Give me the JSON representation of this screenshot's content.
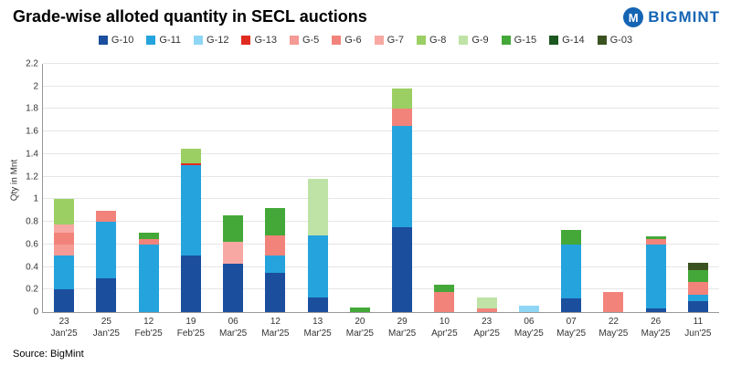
{
  "header": {
    "title": "Grade-wise alloted quantity in SECL auctions",
    "logo_text": "BIGMINT",
    "logo_mark": "M",
    "brand_color": "#1464b4"
  },
  "source": "Source: BigMint",
  "chart_data": {
    "type": "bar",
    "stacked": true,
    "title": "Grade-wise alloted quantity in SECL auctions",
    "ylabel": "Qty in Mnt",
    "ylim": [
      0,
      2.2
    ],
    "ytick_step": 0.2,
    "grid": true,
    "legend_position": "top",
    "categories": [
      {
        "day": "23",
        "month": "Jan'25"
      },
      {
        "day": "25",
        "month": "Jan'25"
      },
      {
        "day": "12",
        "month": "Feb'25"
      },
      {
        "day": "19",
        "month": "Feb'25"
      },
      {
        "day": "06",
        "month": "Mar'25"
      },
      {
        "day": "12",
        "month": "Mar'25"
      },
      {
        "day": "13",
        "month": "Mar'25"
      },
      {
        "day": "20",
        "month": "Mar'25"
      },
      {
        "day": "29",
        "month": "Mar'25"
      },
      {
        "day": "10",
        "month": "Apr'25"
      },
      {
        "day": "23",
        "month": "Apr'25"
      },
      {
        "day": "06",
        "month": "May'25"
      },
      {
        "day": "07",
        "month": "May'25"
      },
      {
        "day": "22",
        "month": "May'25"
      },
      {
        "day": "26",
        "month": "May'25"
      },
      {
        "day": "11",
        "month": "Jun'25"
      }
    ],
    "series": [
      {
        "name": "G-10",
        "color": "#1b4f9e",
        "values": [
          0.2,
          0.3,
          0,
          0.5,
          0.43,
          0.35,
          0.13,
          0,
          0.75,
          0,
          0,
          0,
          0.12,
          0,
          0.03,
          0.1
        ]
      },
      {
        "name": "G-11",
        "color": "#25a3dd",
        "values": [
          0.3,
          0.5,
          0.6,
          0.8,
          0,
          0.15,
          0.55,
          0,
          0.9,
          0,
          0,
          0,
          0.48,
          0,
          0.57,
          0.05
        ]
      },
      {
        "name": "G-12",
        "color": "#8fd6f5",
        "values": [
          0,
          0,
          0,
          0,
          0,
          0,
          0,
          0,
          0,
          0,
          0,
          0.06,
          0,
          0,
          0,
          0
        ]
      },
      {
        "name": "G-13",
        "color": "#e02b20",
        "values": [
          0,
          0,
          0,
          0.02,
          0,
          0,
          0,
          0,
          0,
          0,
          0,
          0,
          0,
          0,
          0,
          0
        ]
      },
      {
        "name": "G-5",
        "color": "#f59a94",
        "values": [
          0.1,
          0,
          0,
          0,
          0,
          0,
          0,
          0,
          0,
          0,
          0,
          0,
          0,
          0,
          0,
          0
        ]
      },
      {
        "name": "G-6",
        "color": "#f2837b",
        "values": [
          0.1,
          0.1,
          0.05,
          0,
          0,
          0.18,
          0,
          0,
          0.15,
          0.18,
          0.03,
          0,
          0,
          0.18,
          0.05,
          0.12
        ]
      },
      {
        "name": "G-7",
        "color": "#f8a8a2",
        "values": [
          0.08,
          0,
          0,
          0,
          0.19,
          0,
          0,
          0,
          0,
          0,
          0,
          0,
          0,
          0,
          0,
          0
        ]
      },
      {
        "name": "G-8",
        "color": "#9bcf63",
        "values": [
          0.22,
          0,
          0,
          0.13,
          0,
          0,
          0,
          0,
          0.18,
          0,
          0,
          0,
          0,
          0,
          0,
          0
        ]
      },
      {
        "name": "G-9",
        "color": "#bfe3a6",
        "values": [
          0,
          0,
          0,
          0,
          0,
          0,
          0.5,
          0,
          0,
          0,
          0.1,
          0,
          0,
          0,
          0,
          0
        ]
      },
      {
        "name": "G-15",
        "color": "#44a838",
        "values": [
          0,
          0,
          0.05,
          0,
          0.24,
          0.24,
          0,
          0.04,
          0,
          0.06,
          0,
          0,
          0.13,
          0,
          0.02,
          0.1
        ]
      },
      {
        "name": "G-14",
        "color": "#1c5720",
        "values": [
          0,
          0,
          0,
          0,
          0,
          0,
          0,
          0,
          0,
          0,
          0,
          0,
          0,
          0,
          0,
          0
        ]
      },
      {
        "name": "G-03",
        "color": "#3a5220",
        "values": [
          0,
          0,
          0,
          0,
          0,
          0,
          0,
          0,
          0,
          0,
          0,
          0,
          0,
          0,
          0,
          0.07
        ]
      }
    ]
  }
}
